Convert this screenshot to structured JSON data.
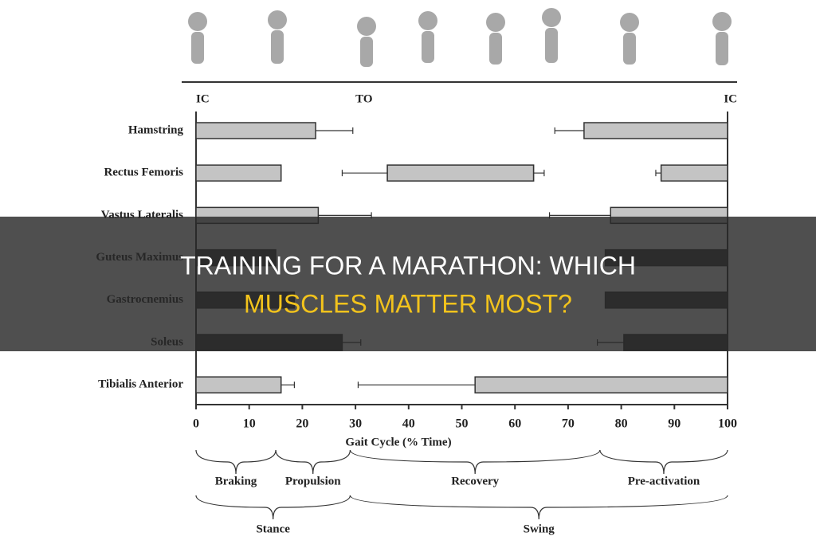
{
  "chart_data": {
    "type": "range-bar",
    "title_lines": [
      "TRAINING FOR A MARATHON: WHICH",
      "MUSCLES MATTER MOST?"
    ],
    "xlabel": "Gait Cycle (% Time)",
    "xlim": [
      0,
      100
    ],
    "xticks": [
      0,
      10,
      20,
      30,
      40,
      50,
      60,
      70,
      80,
      90,
      100
    ],
    "events": [
      {
        "label": "IC",
        "value": 0
      },
      {
        "label": "TO",
        "value": 30
      },
      {
        "label": "IC",
        "value": 100
      }
    ],
    "rows": [
      {
        "label": "Hamstring",
        "color": "#c4c4c4",
        "segments": [
          {
            "start": 0,
            "end": 22.5,
            "whisker": 29.5
          },
          {
            "start": 73,
            "end": 100,
            "whisker": 67.5
          }
        ]
      },
      {
        "label": "Rectus Femoris",
        "color": "#c4c4c4",
        "segments": [
          {
            "start": 0,
            "end": 16
          },
          {
            "start": 36,
            "end": 63.5,
            "whisker": 27.5
          },
          {
            "start": 36,
            "end": 63.5,
            "whisker": 65.5
          },
          {
            "start": 87.5,
            "end": 100,
            "whisker": 86.5
          }
        ]
      },
      {
        "label": "Vastus Lateralis",
        "color": "#c4c4c4",
        "segments": [
          {
            "start": 0,
            "end": 23,
            "whisker": 33
          },
          {
            "start": 78,
            "end": 100,
            "whisker": 66.5
          }
        ]
      },
      {
        "label": "Guteus Maximus",
        "color": "#3c3c3c",
        "segments": [
          {
            "start": 0,
            "end": 15
          },
          {
            "start": 77,
            "end": 100
          }
        ]
      },
      {
        "label": "Gastrocnemius",
        "color": "#3c3c3c",
        "segments": [
          {
            "start": 0,
            "end": 18.5
          },
          {
            "start": 77,
            "end": 100
          }
        ]
      },
      {
        "label": "Soleus",
        "color": "#3c3c3c",
        "segments": [
          {
            "start": 0,
            "end": 27.5,
            "whisker": 31
          },
          {
            "start": 80.5,
            "end": 100,
            "whisker": 75.5
          }
        ]
      },
      {
        "label": "Tibialis Anterior",
        "color": "#c4c4c4",
        "segments": [
          {
            "start": 0,
            "end": 16,
            "whisker": 18.5
          },
          {
            "start": 52.5,
            "end": 100,
            "whisker": 30.5
          }
        ]
      }
    ],
    "phases": [
      [
        {
          "label": "Braking",
          "start": 0,
          "end": 15
        },
        {
          "label": "Propulsion",
          "start": 15,
          "end": 29
        },
        {
          "label": "Recovery",
          "start": 29,
          "end": 76
        },
        {
          "label": "Pre-activation",
          "start": 76,
          "end": 100
        }
      ],
      [
        {
          "label": "Stance",
          "start": 0,
          "end": 29
        },
        {
          "label": "Swing",
          "start": 29,
          "end": 100
        }
      ]
    ]
  }
}
